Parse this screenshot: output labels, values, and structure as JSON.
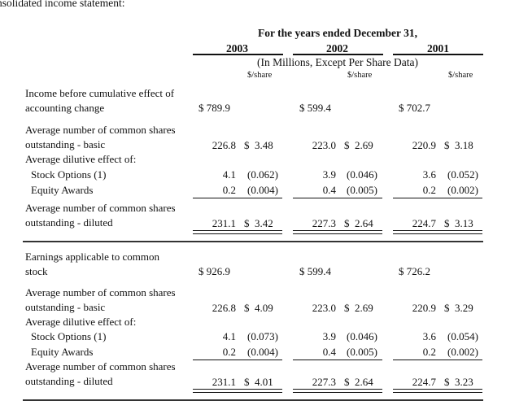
{
  "intro_text": "nsolidated income statement:",
  "header": {
    "period_title": "For the years ended December 31,",
    "years": [
      "2003",
      "2002",
      "2001"
    ],
    "unit_note": "(In Millions, Except Per Share Data)",
    "per_share_label": "$/share"
  },
  "section1": {
    "income_label_1": "Income before cumulative effect of",
    "income_label_2": "accounting change",
    "income": [
      "$ 789.9",
      "$ 599.4",
      "$ 702.7"
    ],
    "basic_label_1": "Average number of common shares",
    "basic_label_2": "outstanding - basic",
    "basic_shares": [
      "226.8",
      "223.0",
      "220.9"
    ],
    "basic_eps": [
      "$  3.48",
      "$  2.69",
      "$  3.18"
    ],
    "dilutive_label": "Average dilutive effect of:",
    "stock_options_label": "Stock Options (1)",
    "stock_options_shares": [
      "4.1",
      "3.9",
      "3.6"
    ],
    "stock_options_eps": [
      "(0.062)",
      "(0.046)",
      "(0.052)"
    ],
    "equity_awards_label": "Equity Awards",
    "equity_awards_shares": [
      "0.2",
      "0.4",
      "0.2"
    ],
    "equity_awards_eps": [
      "(0.004)",
      "(0.005)",
      "(0.002)"
    ],
    "diluted_label_1": "Average number of common shares",
    "diluted_label_2": "outstanding - diluted",
    "diluted_shares": [
      "231.1",
      "227.3",
      "224.7"
    ],
    "diluted_eps": [
      "$  3.42",
      "$  2.64",
      "$  3.13"
    ]
  },
  "section2": {
    "earnings_label_1": "Earnings applicable to common",
    "earnings_label_2": "stock",
    "earnings": [
      "$ 926.9",
      "$ 599.4",
      "$ 726.2"
    ],
    "basic_label_1": "Average number of common shares",
    "basic_label_2": "outstanding - basic",
    "basic_shares": [
      "226.8",
      "223.0",
      "220.9"
    ],
    "basic_eps": [
      "$  4.09",
      "$  2.69",
      "$  3.29"
    ],
    "dilutive_label": "Average dilutive effect of:",
    "stock_options_label": "Stock Options (1)",
    "stock_options_shares": [
      "4.1",
      "3.9",
      "3.6"
    ],
    "stock_options_eps": [
      "(0.073)",
      "(0.046)",
      "(0.054)"
    ],
    "equity_awards_label": "Equity Awards",
    "equity_awards_shares": [
      "0.2",
      "0.4",
      "0.2"
    ],
    "equity_awards_eps": [
      "(0.004)",
      "(0.005)",
      "(0.002)"
    ],
    "diluted_label_1": "Average number of common shares",
    "diluted_label_2": "outstanding - diluted",
    "diluted_shares": [
      "231.1",
      "227.3",
      "224.7"
    ],
    "diluted_eps": [
      "$  4.01",
      "$  2.64",
      "$  3.23"
    ]
  }
}
